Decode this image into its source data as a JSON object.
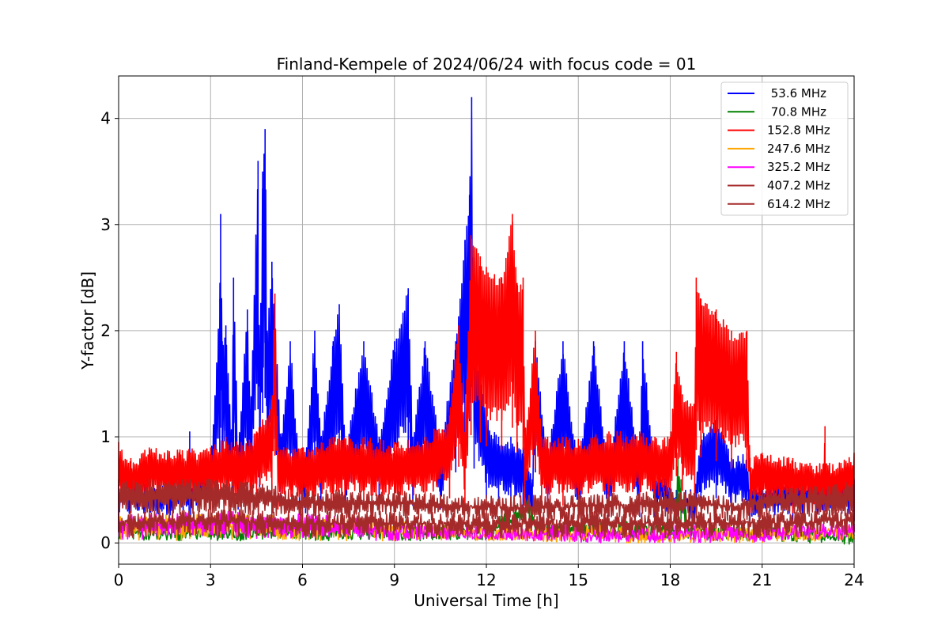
{
  "chart_data": {
    "type": "line",
    "title": "Finland-Kempele of 2024/06/24 with focus code = 01",
    "xlabel": "Universal Time [h]",
    "ylabel": "Y-factor [dB]",
    "xlim": [
      0,
      24
    ],
    "ylim": [
      -0.2,
      4.4
    ],
    "xticks": [
      0,
      3,
      6,
      9,
      12,
      15,
      18,
      21,
      24
    ],
    "yticks": [
      0,
      1,
      2,
      3,
      4
    ],
    "grid": true,
    "legend_position": "top-right",
    "series": [
      {
        "name": " 53.6 MHz",
        "color": "#0000ff",
        "points": [
          [
            0,
            0.55
          ],
          [
            2.3,
            0.6
          ],
          [
            2.32,
            1.05
          ],
          [
            2.35,
            0.6
          ],
          [
            3.0,
            0.7
          ],
          [
            3.3,
            2.3
          ],
          [
            3.33,
            3.1
          ],
          [
            3.38,
            1.9
          ],
          [
            3.5,
            2.05
          ],
          [
            3.7,
            1.0
          ],
          [
            3.75,
            2.5
          ],
          [
            3.9,
            0.9
          ],
          [
            4.2,
            2.2
          ],
          [
            4.3,
            1.2
          ],
          [
            4.55,
            3.6
          ],
          [
            4.6,
            1.5
          ],
          [
            4.7,
            3.5
          ],
          [
            4.78,
            3.9
          ],
          [
            4.85,
            2.0
          ],
          [
            5.0,
            2.65
          ],
          [
            5.3,
            1.0
          ],
          [
            5.6,
            1.9
          ],
          [
            5.9,
            0.75
          ],
          [
            6.1,
            0.8
          ],
          [
            6.4,
            2.0
          ],
          [
            6.6,
            1.0
          ],
          [
            7.0,
            1.9
          ],
          [
            7.2,
            2.25
          ],
          [
            7.4,
            0.9
          ],
          [
            8.0,
            1.9
          ],
          [
            8.5,
            1.0
          ],
          [
            9.0,
            1.9
          ],
          [
            9.45,
            2.4
          ],
          [
            9.6,
            1.0
          ],
          [
            10.0,
            1.9
          ],
          [
            10.5,
            0.9
          ],
          [
            11.0,
            1.9
          ],
          [
            11.3,
            2.85
          ],
          [
            11.45,
            3.28
          ],
          [
            11.52,
            4.2
          ],
          [
            11.6,
            2.0
          ],
          [
            12.0,
            1.2
          ],
          [
            12.4,
            1.0
          ],
          [
            12.8,
            1.0
          ],
          [
            13.2,
            0.9
          ],
          [
            13.5,
            0.6
          ],
          [
            13.6,
            1.9
          ],
          [
            14.0,
            0.8
          ],
          [
            14.5,
            1.9
          ],
          [
            15.0,
            0.7
          ],
          [
            15.5,
            1.9
          ],
          [
            16.0,
            0.7
          ],
          [
            16.5,
            1.9
          ],
          [
            17.0,
            0.7
          ],
          [
            17.1,
            1.9
          ],
          [
            17.5,
            0.7
          ],
          [
            18.0,
            0.6
          ],
          [
            18.2,
            0.5
          ],
          [
            18.5,
            0.5
          ],
          [
            18.8,
            0.5
          ],
          [
            19.0,
            1.0
          ],
          [
            19.5,
            1.2
          ],
          [
            20.0,
            0.8
          ],
          [
            20.5,
            0.85
          ],
          [
            20.6,
            0.55
          ],
          [
            22.0,
            0.6
          ],
          [
            24.0,
            0.6
          ]
        ]
      },
      {
        "name": " 70.8 MHz",
        "color": "#008000",
        "points": [
          [
            0,
            0.15
          ],
          [
            6,
            0.15
          ],
          [
            12,
            0.15
          ],
          [
            13.4,
            0.45
          ],
          [
            13.6,
            0.2
          ],
          [
            18.2,
            0.2
          ],
          [
            18.25,
            0.85
          ],
          [
            18.35,
            0.6
          ],
          [
            18.6,
            0.2
          ],
          [
            20,
            0.15
          ],
          [
            24,
            0.1
          ]
        ]
      },
      {
        "name": "152.8 MHz",
        "color": "#ff0000",
        "points": [
          [
            0,
            0.95
          ],
          [
            0.4,
            0.8
          ],
          [
            1,
            0.9
          ],
          [
            2,
            0.88
          ],
          [
            3,
            0.9
          ],
          [
            3.5,
            1.0
          ],
          [
            4.0,
            0.95
          ],
          [
            4.5,
            1.05
          ],
          [
            5.0,
            1.35
          ],
          [
            5.1,
            2.35
          ],
          [
            5.2,
            0.9
          ],
          [
            6.0,
            0.9
          ],
          [
            7.0,
            1.0
          ],
          [
            8.0,
            1.0
          ],
          [
            9.0,
            0.95
          ],
          [
            10.0,
            1.0
          ],
          [
            10.8,
            1.2
          ],
          [
            11.1,
            2.05
          ],
          [
            11.3,
            1.0
          ],
          [
            11.5,
            2.9
          ],
          [
            11.8,
            2.7
          ],
          [
            12.0,
            2.6
          ],
          [
            12.5,
            2.5
          ],
          [
            12.85,
            3.1
          ],
          [
            13.0,
            2.45
          ],
          [
            13.2,
            2.5
          ],
          [
            13.25,
            1.0
          ],
          [
            13.6,
            2.0
          ],
          [
            13.8,
            1.0
          ],
          [
            14.0,
            1.0
          ],
          [
            14.5,
            1.0
          ],
          [
            15.0,
            0.98
          ],
          [
            16.0,
            1.05
          ],
          [
            17.0,
            1.05
          ],
          [
            17.5,
            1.0
          ],
          [
            18.0,
            1.0
          ],
          [
            18.2,
            1.8
          ],
          [
            18.4,
            1.4
          ],
          [
            18.8,
            1.3
          ],
          [
            18.85,
            2.5
          ],
          [
            19.0,
            2.3
          ],
          [
            19.5,
            2.2
          ],
          [
            20.0,
            2.0
          ],
          [
            20.5,
            2.0
          ],
          [
            20.6,
            0.8
          ],
          [
            21.0,
            0.85
          ],
          [
            22.0,
            0.8
          ],
          [
            23.0,
            0.75
          ],
          [
            23.05,
            1.1
          ],
          [
            23.1,
            0.75
          ],
          [
            24,
            0.85
          ]
        ]
      },
      {
        "name": "247.6 MHz",
        "color": "#ffa500",
        "points": [
          [
            0,
            0.25
          ],
          [
            3,
            0.28
          ],
          [
            6,
            0.25
          ],
          [
            9,
            0.2
          ],
          [
            12,
            0.15
          ],
          [
            15,
            0.12
          ],
          [
            18,
            0.12
          ],
          [
            21,
            0.12
          ],
          [
            24,
            0.15
          ]
        ]
      },
      {
        "name": "325.2 MHz",
        "color": "#ff00ff",
        "points": [
          [
            0,
            0.28
          ],
          [
            3,
            0.3
          ],
          [
            6,
            0.28
          ],
          [
            9,
            0.2
          ],
          [
            12,
            0.15
          ],
          [
            15,
            0.12
          ],
          [
            18,
            0.12
          ],
          [
            21,
            0.13
          ],
          [
            23,
            0.18
          ],
          [
            24,
            0.18
          ]
        ]
      },
      {
        "name": "407.2 MHz",
        "color": "#a52a2a",
        "points": [
          [
            0,
            0.3
          ],
          [
            3,
            0.32
          ],
          [
            6,
            0.3
          ],
          [
            9,
            0.3
          ],
          [
            12,
            0.28
          ],
          [
            15,
            0.3
          ],
          [
            18,
            0.3
          ],
          [
            21,
            0.3
          ],
          [
            24,
            0.32
          ]
        ]
      },
      {
        "name": "614.2 MHz",
        "color": "#a52a2a",
        "points": [
          [
            0,
            0.6
          ],
          [
            1,
            0.6
          ],
          [
            3,
            0.6
          ],
          [
            4,
            0.58
          ],
          [
            5,
            0.55
          ],
          [
            6,
            0.5
          ],
          [
            9,
            0.5
          ],
          [
            12,
            0.45
          ],
          [
            15,
            0.45
          ],
          [
            18,
            0.5
          ],
          [
            20,
            0.45
          ],
          [
            21,
            0.5
          ],
          [
            24,
            0.58
          ]
        ]
      }
    ]
  }
}
